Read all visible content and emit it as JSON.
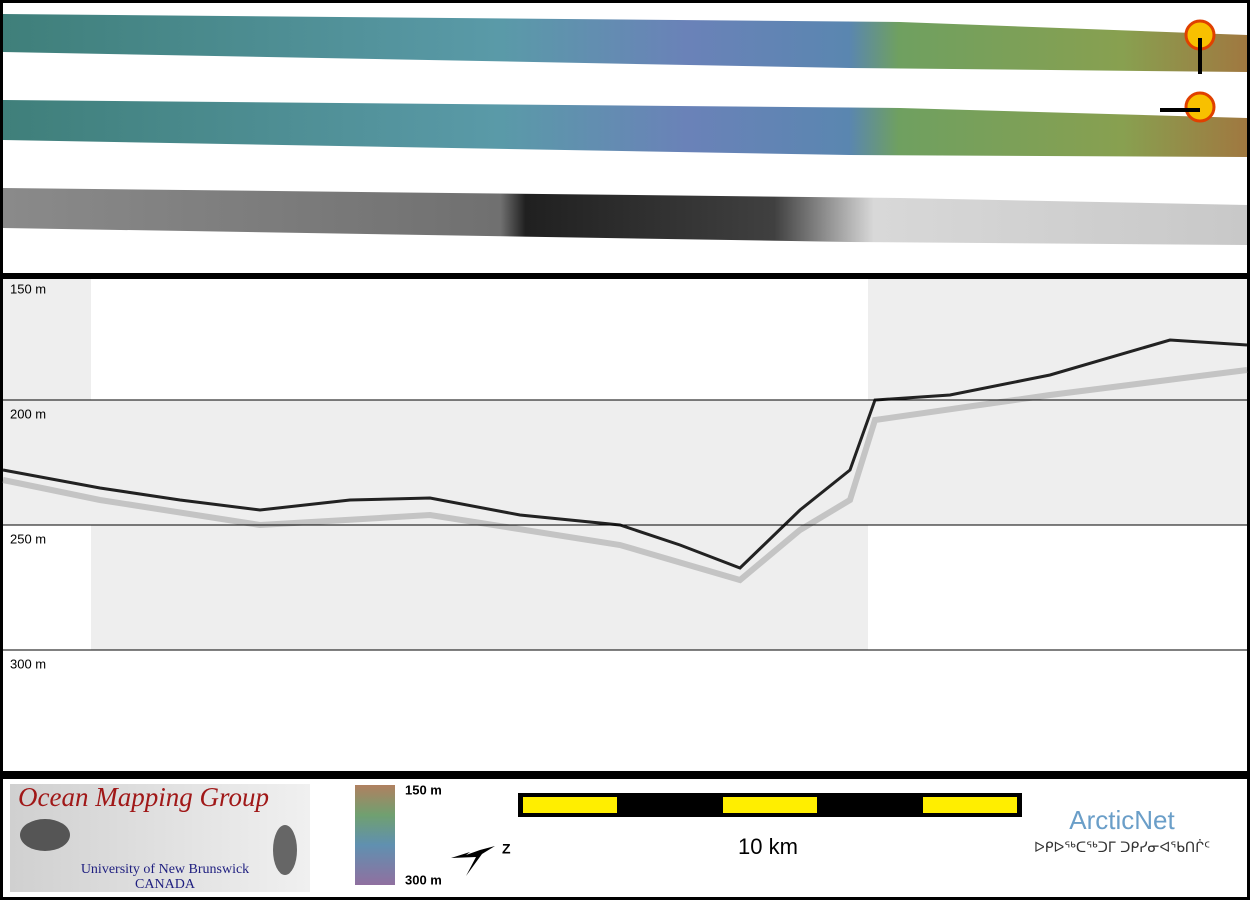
{
  "profile": {
    "depth_labels": [
      "150 m",
      "200 m",
      "250 m",
      "300 m"
    ]
  },
  "footer": {
    "logo": {
      "title": "Ocean Mapping Group",
      "university": "University of New Brunswick",
      "country": "CANADA"
    },
    "colorbar": {
      "top": "150 m",
      "bottom": "300 m"
    },
    "compass": "Z",
    "scale": "10 km",
    "partner": {
      "name": "ArcticNet",
      "syllabics": "ᐅᑭᐅᖅᑕᖅᑐᒥ ᑐᑭᓯᓂᐊᖃᑎᒌᑦ"
    }
  }
}
